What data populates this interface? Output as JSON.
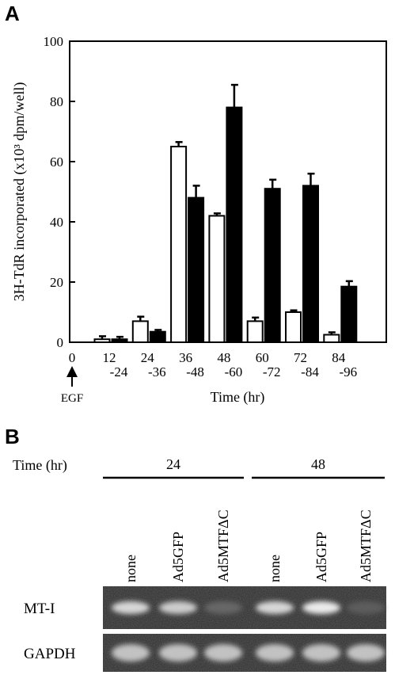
{
  "panel_a": {
    "letter": "A",
    "y_axis_label": "3H-TdR incorporated (x10³ dpm/well)",
    "x_axis_label": "Time (hr)",
    "egf_label": "EGF",
    "zero_tick": "0"
  },
  "chart_data": {
    "type": "bar",
    "title": "",
    "xlabel": "Time (hr)",
    "ylabel": "3H-TdR incorporated (x10³ dpm/well)",
    "ylim": [
      0,
      100
    ],
    "yticks": [
      0,
      20,
      40,
      60,
      80,
      100
    ],
    "grid": false,
    "legend": "none",
    "categories": [
      [
        "12",
        "-24"
      ],
      [
        "24",
        "-36"
      ],
      [
        "36",
        "-48"
      ],
      [
        "48",
        "-60"
      ],
      [
        "60",
        "-72"
      ],
      [
        "72",
        "-84"
      ],
      [
        "84",
        "-96"
      ]
    ],
    "series": [
      {
        "fill": "#ffffff",
        "values": [
          1,
          7,
          65,
          42,
          7,
          10,
          2.5
        ],
        "errors": [
          1,
          1.5,
          1.5,
          0.8,
          1.2,
          0.6,
          0.8
        ]
      },
      {
        "fill": "#000000",
        "values": [
          1,
          3.5,
          48,
          78,
          51,
          52,
          18.5
        ],
        "errors": [
          0.8,
          0.6,
          4,
          7.5,
          3,
          4,
          1.8
        ]
      }
    ]
  },
  "panel_b": {
    "letter": "B",
    "time_label": "Time (hr)",
    "groups": [
      {
        "time": "24",
        "lanes": [
          "none",
          "Ad5GFP",
          "Ad5MTFΔC"
        ]
      },
      {
        "time": "48",
        "lanes": [
          "none",
          "Ad5GFP",
          "Ad5MTFΔC"
        ]
      }
    ],
    "rows": [
      {
        "label": "MT-I",
        "intensities": [
          0.85,
          0.8,
          0.3,
          0.85,
          0.95,
          0.25
        ]
      },
      {
        "label": "GAPDH",
        "intensities": [
          0.75,
          0.75,
          0.75,
          0.75,
          0.75,
          0.75
        ]
      }
    ]
  }
}
